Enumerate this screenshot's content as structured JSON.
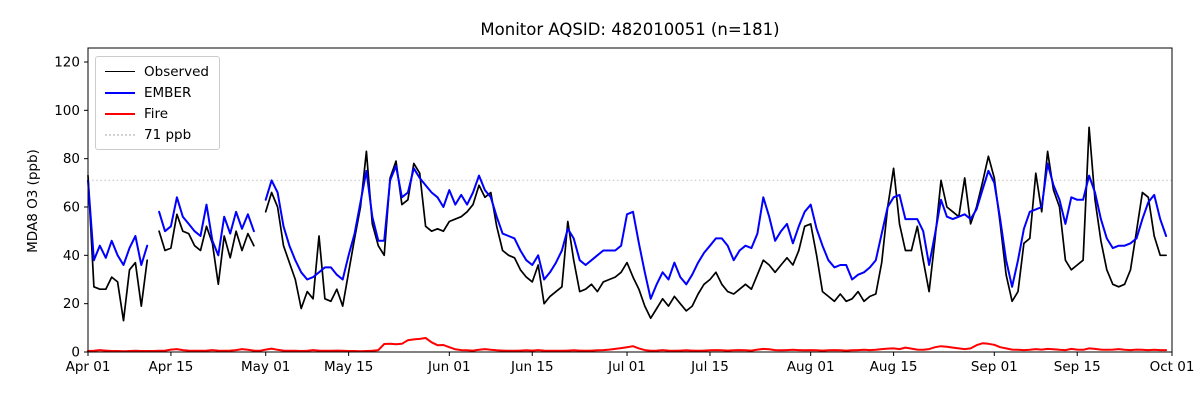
{
  "title": "Monitor AQSID: 482010051 (n=181)",
  "chart_data": {
    "type": "line",
    "title": "Monitor AQSID: 482010051 (n=181)",
    "xlabel": "",
    "ylabel": "MDA8 O3 (ppb)",
    "ylim": [
      0,
      126
    ],
    "y_ticks": [
      0,
      20,
      40,
      60,
      80,
      100,
      120
    ],
    "grid": false,
    "legend_position": "upper-left",
    "n_days": 183,
    "x_start_label": "Apr 01",
    "x_ticks": [
      {
        "label": "Apr 01",
        "day": 0
      },
      {
        "label": "Apr 15",
        "day": 14
      },
      {
        "label": "May 01",
        "day": 30
      },
      {
        "label": "May 15",
        "day": 44
      },
      {
        "label": "Jun 01",
        "day": 61
      },
      {
        "label": "Jun 15",
        "day": 75
      },
      {
        "label": "Jul 01",
        "day": 91
      },
      {
        "label": "Jul 15",
        "day": 105
      },
      {
        "label": "Aug 01",
        "day": 122
      },
      {
        "label": "Aug 15",
        "day": 136
      },
      {
        "label": "Sep 01",
        "day": 153
      },
      {
        "label": "Sep 15",
        "day": 167
      },
      {
        "label": "Oct 01",
        "day": 183
      }
    ],
    "threshold": {
      "label": "71 ppb",
      "value": 71,
      "color": "#d3d3d3",
      "style": "dotted"
    },
    "series": [
      {
        "name": "Observed",
        "color": "#000000",
        "values": [
          73,
          27,
          26,
          26,
          31,
          29,
          13,
          34,
          37,
          19,
          38,
          null,
          50,
          42,
          43,
          57,
          50,
          49,
          44,
          42,
          52,
          45,
          28,
          48,
          39,
          50,
          42,
          49,
          44,
          null,
          58,
          66,
          60,
          44,
          37,
          30,
          18,
          25,
          22,
          48,
          22,
          21,
          26,
          19,
          33,
          47,
          60,
          83,
          53,
          44,
          40,
          72,
          79,
          61,
          63,
          78,
          74,
          52,
          50,
          51,
          50,
          54,
          55,
          56,
          58,
          61,
          69,
          64,
          66,
          52,
          42,
          40,
          39,
          34,
          31,
          29,
          36,
          20,
          23,
          25,
          27,
          54,
          38,
          25,
          26,
          28,
          25,
          29,
          30,
          31,
          33,
          37,
          31,
          26,
          19,
          14,
          18,
          22,
          19,
          23,
          20,
          17,
          19,
          24,
          28,
          30,
          33,
          28,
          25,
          24,
          26,
          28,
          26,
          32,
          38,
          36,
          33,
          36,
          39,
          36,
          42,
          52,
          53,
          40,
          25,
          23,
          21,
          24,
          21,
          22,
          25,
          21,
          23,
          24,
          37,
          60,
          76,
          53,
          42,
          42,
          52,
          38,
          25,
          47,
          71,
          60,
          58,
          56,
          72,
          53,
          60,
          70,
          81,
          72,
          53,
          32,
          21,
          25,
          45,
          47,
          74,
          58,
          83,
          67,
          60,
          38,
          34,
          36,
          38,
          93,
          63,
          46,
          34,
          28,
          27,
          28,
          34,
          50,
          66,
          64,
          48,
          40,
          40
        ]
      },
      {
        "name": "EMBER",
        "color": "#0000ff",
        "values": [
          71,
          38,
          44,
          39,
          46,
          40,
          36,
          43,
          48,
          36,
          44,
          null,
          58,
          50,
          52,
          64,
          56,
          53,
          50,
          48,
          61,
          46,
          40,
          56,
          49,
          58,
          51,
          57,
          50,
          null,
          63,
          71,
          66,
          52,
          44,
          38,
          33,
          30,
          31,
          33,
          35,
          35,
          32,
          30,
          40,
          49,
          62,
          75,
          56,
          46,
          46,
          71,
          77,
          64,
          66,
          76,
          72,
          69,
          66,
          64,
          60,
          67,
          61,
          65,
          61,
          66,
          73,
          67,
          64,
          56,
          49,
          48,
          47,
          42,
          38,
          36,
          40,
          30,
          33,
          37,
          42,
          51,
          47,
          38,
          36,
          38,
          40,
          42,
          42,
          42,
          44,
          57,
          58,
          45,
          33,
          22,
          28,
          33,
          30,
          37,
          31,
          28,
          32,
          37,
          41,
          44,
          47,
          47,
          44,
          38,
          42,
          44,
          43,
          49,
          64,
          56,
          46,
          50,
          53,
          45,
          52,
          58,
          61,
          51,
          44,
          38,
          35,
          36,
          36,
          30,
          32,
          33,
          35,
          38,
          49,
          60,
          64,
          65,
          55,
          55,
          55,
          50,
          36,
          49,
          63,
          56,
          55,
          56,
          57,
          55,
          59,
          67,
          75,
          70,
          55,
          38,
          27,
          38,
          51,
          58,
          59,
          60,
          78,
          69,
          63,
          53,
          64,
          63,
          63,
          73,
          66,
          55,
          47,
          43,
          44,
          44,
          45,
          47,
          55,
          62,
          65,
          55,
          48
        ]
      },
      {
        "name": "Fire",
        "color": "#ff0000",
        "values": [
          0.4,
          0.5,
          0.8,
          0.6,
          0.4,
          0.4,
          0.3,
          0.4,
          0.5,
          0.4,
          0.4,
          0.4,
          0.5,
          0.6,
          1.0,
          1.2,
          0.8,
          0.6,
          0.5,
          0.5,
          0.6,
          0.8,
          0.6,
          0.5,
          0.6,
          0.8,
          1.2,
          0.9,
          0.6,
          0.5,
          1.0,
          1.4,
          0.9,
          0.6,
          0.5,
          0.5,
          0.4,
          0.5,
          0.8,
          0.6,
          0.5,
          0.5,
          0.6,
          0.5,
          0.4,
          0.4,
          0.3,
          0.4,
          0.5,
          0.8,
          3.3,
          3.4,
          3.2,
          3.4,
          4.9,
          5.2,
          5.4,
          5.8,
          4.0,
          2.8,
          2.9,
          2.0,
          1.1,
          0.8,
          0.7,
          0.6,
          0.9,
          1.2,
          0.9,
          0.7,
          0.6,
          0.5,
          0.5,
          0.6,
          0.7,
          0.6,
          0.8,
          0.6,
          0.5,
          0.5,
          0.5,
          0.6,
          0.7,
          0.6,
          0.5,
          0.6,
          0.7,
          0.8,
          1.0,
          1.3,
          1.6,
          2.0,
          2.4,
          1.5,
          0.8,
          0.5,
          0.6,
          0.8,
          0.6,
          0.5,
          0.6,
          0.7,
          0.6,
          0.5,
          0.6,
          0.7,
          0.8,
          0.7,
          0.6,
          0.7,
          0.8,
          0.7,
          0.6,
          1.0,
          1.3,
          1.1,
          0.8,
          0.7,
          0.8,
          0.9,
          0.8,
          0.7,
          0.8,
          0.7,
          0.6,
          0.7,
          0.8,
          0.7,
          0.6,
          0.7,
          0.8,
          0.9,
          0.8,
          0.9,
          1.2,
          1.4,
          1.5,
          1.2,
          1.8,
          1.4,
          1.0,
          0.9,
          1.2,
          2.0,
          2.4,
          2.2,
          1.8,
          1.5,
          1.2,
          1.5,
          2.8,
          3.6,
          3.4,
          3.0,
          2.0,
          1.5,
          1.0,
          0.9,
          0.8,
          0.9,
          1.2,
          1.0,
          1.3,
          1.1,
          0.9,
          0.8,
          1.3,
          1.0,
          0.9,
          1.5,
          1.3,
          1.0,
          0.9,
          1.0,
          1.2,
          0.9,
          0.8,
          1.0,
          0.9,
          0.8,
          0.9,
          0.8,
          0.8
        ]
      }
    ]
  }
}
